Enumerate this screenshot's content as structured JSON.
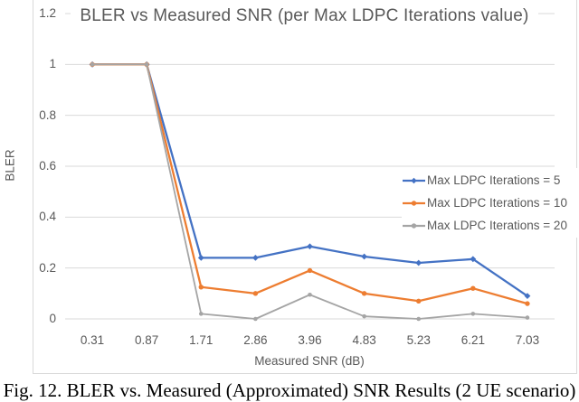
{
  "caption": "Fig. 12. BLER vs. Measured (Approximated) SNR Results (2 UE scenario)",
  "colors": {
    "gridline": "#D9D9D9",
    "chart_border": "#D9D9D9",
    "axis_text": "#595959",
    "title_text": "#595959",
    "caption_text": "#000000",
    "background": "#FFFFFF"
  },
  "chart_data": {
    "type": "line",
    "title": "BLER vs Measured SNR (per Max LDPC Iterations value)",
    "xlabel": "Measured SNR (dB)",
    "ylabel": "BLER",
    "categories": [
      "0.31",
      "0.87",
      "1.71",
      "2.86",
      "3.96",
      "4.83",
      "5.23",
      "6.21",
      "7.03"
    ],
    "series": [
      {
        "name": "Max LDPC Iterations = 5",
        "color": "#4472C4",
        "marker": "diamond",
        "values": [
          1.0,
          1.0,
          0.24,
          0.24,
          0.285,
          0.245,
          0.22,
          0.235,
          0.09
        ]
      },
      {
        "name": "Max LDPC Iterations = 10",
        "color": "#ED7D31",
        "marker": "circle",
        "values": [
          1.0,
          1.0,
          0.125,
          0.1,
          0.19,
          0.1,
          0.07,
          0.12,
          0.06
        ]
      },
      {
        "name": "Max LDPC Iterations = 20",
        "color": "#A5A5A5",
        "marker": "circle",
        "values": [
          1.0,
          1.0,
          0.02,
          0.0,
          0.095,
          0.01,
          0.0,
          0.02,
          0.005
        ]
      }
    ],
    "ylim": [
      0,
      1.2
    ],
    "yticks": [
      0,
      0.2,
      0.4,
      0.6,
      0.8,
      1,
      1.2
    ],
    "ytick_labels": [
      "0",
      "0.2",
      "0.4",
      "0.6",
      "0.8",
      "1",
      "1.2"
    ],
    "grid": true,
    "legend_position": "inside-right"
  }
}
